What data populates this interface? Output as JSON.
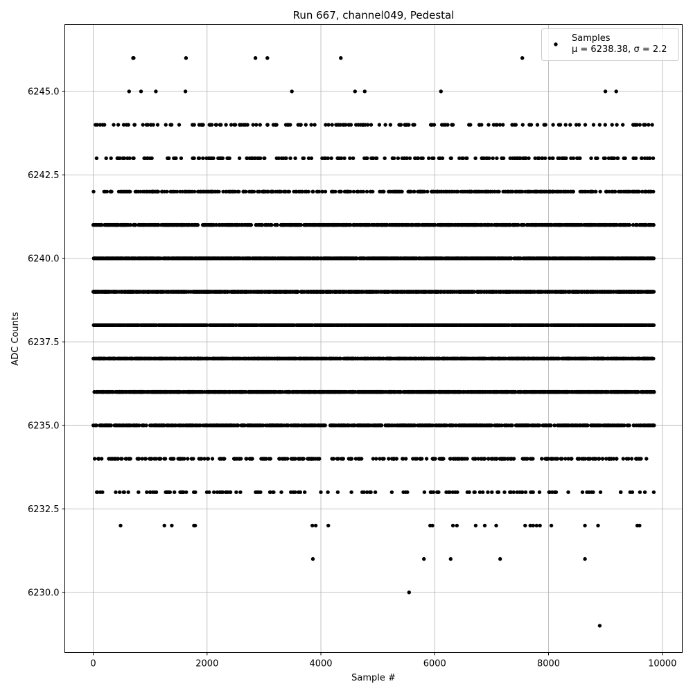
{
  "chart_data": {
    "type": "scatter",
    "title": "Run 667, channel049, Pedestal",
    "xlabel": "Sample #",
    "ylabel": "ADC Counts",
    "xlim": [
      -500,
      10350
    ],
    "ylim": [
      6228.2,
      6247.0
    ],
    "x_ticks": [
      0,
      2000,
      4000,
      6000,
      8000,
      10000
    ],
    "x_tick_labels": [
      "0",
      "2000",
      "4000",
      "6000",
      "8000",
      "10000"
    ],
    "y_ticks": [
      6230.0,
      6232.5,
      6235.0,
      6237.5,
      6240.0,
      6242.5,
      6245.0
    ],
    "y_tick_labels": [
      "6230.0",
      "6232.5",
      "6235.0",
      "6237.5",
      "6240.0",
      "6242.5",
      "6245.0"
    ],
    "grid": true,
    "legend_position": "top-right",
    "series": [
      {
        "name": "Samples",
        "stats_label": "μ = 6238.38, σ = 2.2",
        "color": "#000000",
        "marker": "circle",
        "n_samples": 9856,
        "x_range": [
          0,
          9855
        ],
        "outliers": [
          {
            "x": 700,
            "y": 6246
          },
          {
            "x": 710,
            "y": 6246
          },
          {
            "x": 1630,
            "y": 6246
          },
          {
            "x": 2850,
            "y": 6246
          },
          {
            "x": 3060,
            "y": 6246
          },
          {
            "x": 4350,
            "y": 6246
          },
          {
            "x": 7540,
            "y": 6246
          },
          {
            "x": 630,
            "y": 6245
          },
          {
            "x": 840,
            "y": 6245
          },
          {
            "x": 1100,
            "y": 6245
          },
          {
            "x": 1620,
            "y": 6245
          },
          {
            "x": 3490,
            "y": 6245
          },
          {
            "x": 4600,
            "y": 6245
          },
          {
            "x": 4770,
            "y": 6245
          },
          {
            "x": 6110,
            "y": 6245
          },
          {
            "x": 9000,
            "y": 6245
          },
          {
            "x": 9190,
            "y": 6245
          },
          {
            "x": 480,
            "y": 6232
          },
          {
            "x": 1250,
            "y": 6232
          },
          {
            "x": 1380,
            "y": 6232
          },
          {
            "x": 1770,
            "y": 6232
          },
          {
            "x": 1790,
            "y": 6232
          },
          {
            "x": 3850,
            "y": 6232
          },
          {
            "x": 3910,
            "y": 6232
          },
          {
            "x": 4130,
            "y": 6232
          },
          {
            "x": 5920,
            "y": 6232
          },
          {
            "x": 5960,
            "y": 6232
          },
          {
            "x": 6320,
            "y": 6232
          },
          {
            "x": 6390,
            "y": 6232
          },
          {
            "x": 6720,
            "y": 6232
          },
          {
            "x": 6880,
            "y": 6232
          },
          {
            "x": 7080,
            "y": 6232
          },
          {
            "x": 7590,
            "y": 6232
          },
          {
            "x": 7680,
            "y": 6232
          },
          {
            "x": 7730,
            "y": 6232
          },
          {
            "x": 7790,
            "y": 6232
          },
          {
            "x": 7850,
            "y": 6232
          },
          {
            "x": 8050,
            "y": 6232
          },
          {
            "x": 8640,
            "y": 6232
          },
          {
            "x": 8870,
            "y": 6232
          },
          {
            "x": 9560,
            "y": 6232
          },
          {
            "x": 9600,
            "y": 6232
          },
          {
            "x": 3860,
            "y": 6231
          },
          {
            "x": 5810,
            "y": 6231
          },
          {
            "x": 6280,
            "y": 6231
          },
          {
            "x": 7150,
            "y": 6231
          },
          {
            "x": 8640,
            "y": 6231
          },
          {
            "x": 5550,
            "y": 6230
          },
          {
            "x": 8900,
            "y": 6229
          }
        ]
      }
    ]
  }
}
